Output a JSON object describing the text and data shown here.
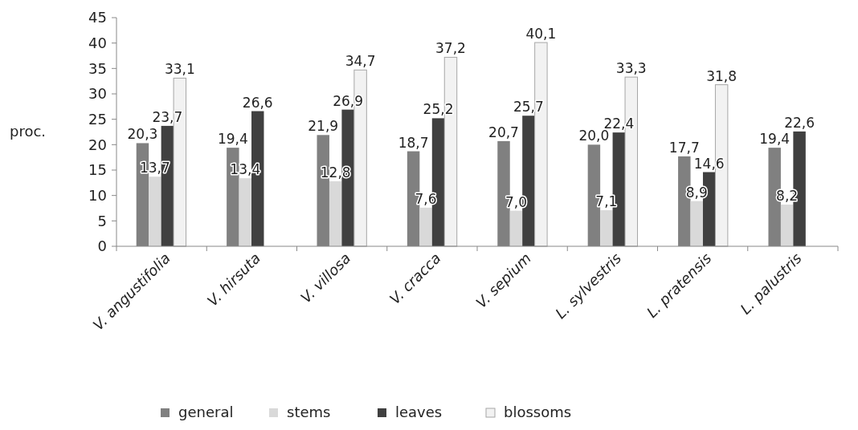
{
  "chart_data": {
    "type": "bar",
    "ylabel": "proc.",
    "categories": [
      "V. angustifolia",
      "V. hirsuta",
      "V. villosa",
      "V. cracca",
      "V. sepium",
      "L. sylvestris",
      "L. pratensis",
      "L. palustris"
    ],
    "series": [
      {
        "name": "general",
        "color": "#808080",
        "values": [
          20.3,
          19.4,
          21.9,
          18.7,
          20.7,
          20.0,
          17.7,
          19.4
        ],
        "value_labels": [
          "20,3",
          "19,4",
          "21,9",
          "18,7",
          "20,7",
          "20,0",
          "17,7",
          "19,4"
        ]
      },
      {
        "name": "stems",
        "color": "#d9d9d9",
        "values": [
          13.7,
          13.4,
          12.8,
          7.6,
          7.0,
          7.1,
          8.9,
          8.2
        ],
        "value_labels": [
          "13,7",
          "13,4",
          "12,8",
          "7,6",
          "7,0",
          "7,1",
          "8,9",
          "8,2"
        ]
      },
      {
        "name": "leaves",
        "color": "#404040",
        "values": [
          23.7,
          26.6,
          26.9,
          25.2,
          25.7,
          22.4,
          14.6,
          22.6
        ],
        "value_labels": [
          "23,7",
          "26,6",
          "26,9",
          "25,2",
          "25,7",
          "22,4",
          "14,6",
          "22,6"
        ]
      },
      {
        "name": "blossoms",
        "color": "#f2f2f2",
        "values": [
          33.1,
          null,
          34.7,
          37.2,
          40.1,
          33.3,
          31.8,
          null
        ],
        "value_labels": [
          "33,1",
          null,
          "34,7",
          "37,2",
          "40,1",
          "33,3",
          "31,8",
          null
        ]
      }
    ],
    "ylim": [
      0,
      45
    ],
    "yticks": [
      0,
      5,
      10,
      15,
      20,
      25,
      30,
      35,
      40,
      45
    ],
    "grid": false,
    "legend": "bottom"
  }
}
